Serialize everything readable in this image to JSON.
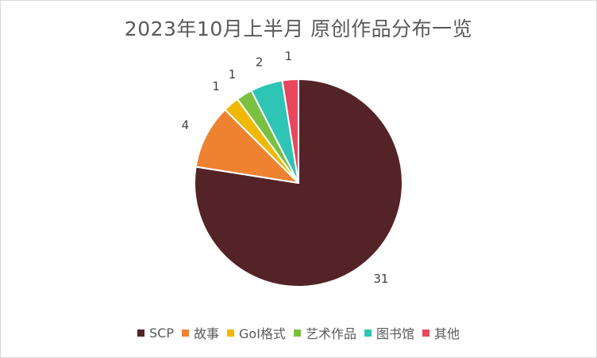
{
  "chart_data": {
    "type": "pie",
    "title": "2023年10月上半月 原创作品分布一览",
    "categories": [
      "SCP",
      "故事",
      "GoI格式",
      "艺术作品",
      "图书馆",
      "其他"
    ],
    "values": [
      31,
      4,
      1,
      1,
      2,
      1
    ],
    "colors": [
      "#542328",
      "#ee8230",
      "#f0b800",
      "#7ac142",
      "#2ec4b6",
      "#e8475e"
    ],
    "start_angle_deg": 0,
    "direction": "clockwise",
    "legend_position": "bottom",
    "show_data_labels": true
  }
}
